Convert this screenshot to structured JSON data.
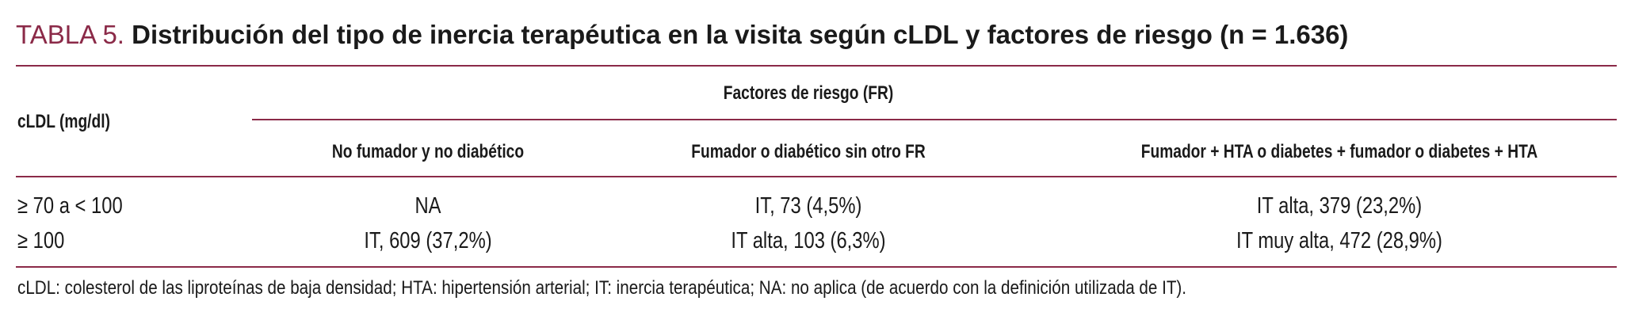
{
  "title": {
    "label": "TABLA 5.",
    "text": "Distribución del tipo de inercia terapéutica en la visita según cLDL y factores de riesgo (n = 1.636)"
  },
  "table": {
    "row_header": "cLDL (mg/dl)",
    "group_header": "Factores de riesgo (FR)",
    "columns": [
      "No fumador y no diabético",
      "Fumador o diabético sin otro FR",
      "Fumador + HTA o diabetes + fumador o diabetes + HTA"
    ],
    "rows": [
      {
        "label": "≥ 70 a < 100",
        "cells": [
          "NA",
          "IT, 73 (4,5%)",
          "IT alta, 379 (23,2%)"
        ]
      },
      {
        "label": "≥ 100",
        "cells": [
          "IT, 609 (37,2%)",
          "IT alta, 103 (6,3%)",
          "IT muy alta, 472 (28,9%)"
        ]
      }
    ]
  },
  "footnote": "cLDL: colesterol de las liproteínas de baja densidad; HTA: hipertensión arterial; IT: inercia terapéutica; NA: no aplica (de acuerdo con la definición utilizada de IT).",
  "colors": {
    "accent": "#8b2a48",
    "text": "#1a1a1a"
  }
}
